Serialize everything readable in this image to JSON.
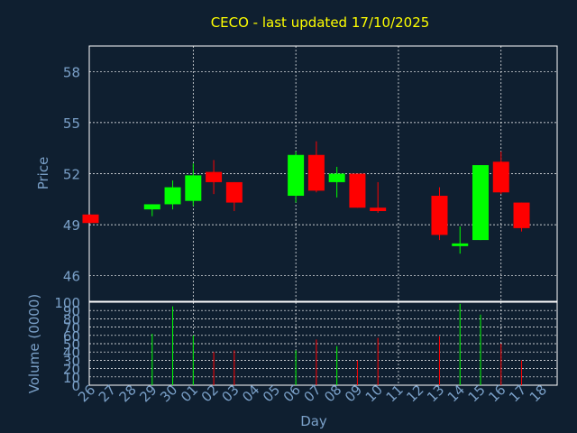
{
  "chart_data": {
    "type": "candlestick",
    "title": "CECO - last updated 17/10/2025",
    "xlabel": "Day",
    "price_ylabel": "Price",
    "volume_ylabel": "Volume (0000)",
    "price_ticks": [
      46,
      49,
      52,
      55,
      58
    ],
    "price_ylim": [
      44.5,
      59.5
    ],
    "volume_ticks": [
      0,
      10,
      20,
      30,
      40,
      50,
      60,
      70,
      80,
      90,
      100
    ],
    "volume_ylim": [
      0,
      100
    ],
    "x_labels": [
      "26",
      "27",
      "28",
      "29",
      "30",
      "01",
      "02",
      "03",
      "04",
      "05",
      "06",
      "07",
      "08",
      "09",
      "10",
      "11",
      "12",
      "13",
      "14",
      "15",
      "16",
      "17",
      "18"
    ],
    "grid": true,
    "colors": {
      "up": "#00ff00",
      "down": "#ff0000",
      "background": "#0f1f30",
      "title": "#ffff00",
      "axis_text": "#7aa0c8"
    },
    "candles": [
      {
        "x": "26",
        "open": 49.6,
        "high": 49.6,
        "low": 49.1,
        "close": 49.1,
        "volume": 0
      },
      {
        "x": "29",
        "open": 49.9,
        "high": 50.2,
        "low": 49.5,
        "close": 50.2,
        "volume": 62
      },
      {
        "x": "30",
        "open": 50.2,
        "high": 51.6,
        "low": 49.9,
        "close": 51.2,
        "volume": 95
      },
      {
        "x": "01",
        "open": 50.4,
        "high": 52.6,
        "low": 50.1,
        "close": 51.9,
        "volume": 60
      },
      {
        "x": "02",
        "open": 52.1,
        "high": 52.8,
        "low": 50.8,
        "close": 51.5,
        "volume": 40
      },
      {
        "x": "03",
        "open": 51.5,
        "high": 51.5,
        "low": 49.8,
        "close": 50.3,
        "volume": 42
      },
      {
        "x": "06",
        "open": 50.7,
        "high": 53.3,
        "low": 50.3,
        "close": 53.1,
        "volume": 42
      },
      {
        "x": "07",
        "open": 53.1,
        "high": 53.9,
        "low": 50.9,
        "close": 51.0,
        "volume": 55
      },
      {
        "x": "08",
        "open": 51.5,
        "high": 52.4,
        "low": 50.6,
        "close": 52.0,
        "volume": 47
      },
      {
        "x": "09",
        "open": 52.0,
        "high": 52.0,
        "low": 50.0,
        "close": 50.0,
        "volume": 30
      },
      {
        "x": "10",
        "open": 50.0,
        "high": 51.5,
        "low": 49.7,
        "close": 49.8,
        "volume": 57
      },
      {
        "x": "13",
        "open": 50.7,
        "high": 51.2,
        "low": 48.1,
        "close": 48.4,
        "volume": 59
      },
      {
        "x": "14",
        "open": 47.8,
        "high": 48.9,
        "low": 47.3,
        "close": 47.9,
        "volume": 98
      },
      {
        "x": "15",
        "open": 48.1,
        "high": 52.5,
        "low": 48.1,
        "close": 52.5,
        "volume": 85
      },
      {
        "x": "16",
        "open": 52.7,
        "high": 53.3,
        "low": 50.8,
        "close": 50.9,
        "volume": 50
      },
      {
        "x": "17",
        "open": 50.3,
        "high": 50.3,
        "low": 48.6,
        "close": 48.8,
        "volume": 30
      }
    ]
  }
}
